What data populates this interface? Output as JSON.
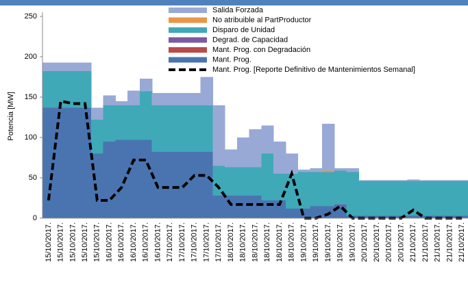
{
  "chart_data": {
    "type": "stacked-area",
    "y_label": "Potencia [MW]",
    "categories": [
      "15/10/2017.",
      "15/10/2017.",
      "15/10/2017.",
      "15/10/2017.",
      "15/10/2017.",
      "16/10/2017.",
      "16/10/2017.",
      "16/10/2017.",
      "16/10/2017.",
      "16/10/2017.",
      "17/10/2017.",
      "17/10/2017.",
      "17/10/2017.",
      "17/10/2017.",
      "17/10/2017.",
      "18/10/2017.",
      "18/10/2017.",
      "18/10/2017.",
      "18/10/2017.",
      "18/10/2017.",
      "18/10/2017.",
      "19/10/2017.",
      "19/10/2017.",
      "19/10/2017.",
      "19/10/2017.",
      "19/10/2017.",
      "20/10/2017.",
      "20/10/2017.",
      "20/10/2017.",
      "20/10/2017.",
      "21/10/2017.",
      "21/10/2017.",
      "21/10/2017.",
      "21/10/2017.",
      "21/10/2017."
    ],
    "series": [
      {
        "name": "Salida Forzada",
        "color": "#98a9d6",
        "values": [
          11,
          11,
          11,
          11,
          15,
          12,
          5,
          18,
          16,
          15,
          15,
          15,
          15,
          35,
          75,
          22,
          37,
          47,
          35,
          40,
          25,
          3,
          5,
          58,
          3,
          5,
          1,
          1,
          1,
          1,
          2,
          1,
          1,
          1,
          1
        ]
      },
      {
        "name": "No atribuible al PartProductor",
        "color": "#e8964a",
        "values": [
          0,
          0,
          0,
          0,
          0,
          0,
          0,
          0,
          0,
          0,
          0,
          0,
          0,
          0,
          0,
          0,
          0,
          0,
          0,
          0,
          0,
          0,
          0,
          2,
          0,
          0,
          0,
          0,
          0,
          0,
          0,
          0,
          0,
          0,
          0
        ]
      },
      {
        "name": "Disparo de Unidad",
        "color": "#3fa9b8",
        "values": [
          45,
          45,
          45,
          45,
          42,
          45,
          43,
          43,
          60,
          58,
          58,
          58,
          58,
          58,
          37,
          35,
          35,
          35,
          58,
          33,
          43,
          45,
          42,
          42,
          42,
          54,
          43,
          43,
          43,
          43,
          43,
          43,
          43,
          43,
          43
        ]
      },
      {
        "name": "Degrad. de Capacidad",
        "color": "#7a5ba0",
        "values": [
          0,
          0,
          0,
          0,
          0,
          0,
          0,
          0,
          0,
          0,
          0,
          0,
          0,
          0,
          0,
          0,
          0,
          0,
          0,
          0,
          0,
          0,
          0,
          0,
          2,
          0,
          0,
          0,
          0,
          0,
          0,
          0,
          0,
          0,
          0
        ]
      },
      {
        "name": "Mant. Prog. con Degradación",
        "color": "#b94a4a",
        "values": [
          0,
          0,
          0,
          0,
          0,
          0,
          0,
          0,
          0,
          0,
          0,
          0,
          0,
          0,
          0,
          0,
          0,
          0,
          0,
          0,
          0,
          0,
          0,
          0,
          0,
          0,
          0,
          0,
          0,
          0,
          0,
          0,
          0,
          0,
          0
        ]
      },
      {
        "name": "Mant. Prog.",
        "color": "#4a74b0",
        "values": [
          137,
          137,
          137,
          137,
          80,
          95,
          97,
          97,
          97,
          82,
          82,
          82,
          82,
          82,
          28,
          28,
          28,
          28,
          22,
          22,
          12,
          12,
          15,
          15,
          15,
          3,
          3,
          3,
          3,
          3,
          3,
          3,
          3,
          3,
          3
        ]
      }
    ],
    "line": {
      "name": "Mant. Prog. [Reporte Definitivo  de Mantenimientos Semanal]",
      "color": "#000000",
      "values": [
        22,
        145,
        142,
        142,
        22,
        22,
        38,
        72,
        72,
        38,
        38,
        38,
        53,
        53,
        38,
        17,
        17,
        17,
        17,
        17,
        55,
        0,
        0,
        5,
        15,
        0,
        0,
        0,
        0,
        0,
        10,
        0,
        0,
        0,
        0
      ]
    },
    "ylim": [
      0,
      250
    ],
    "yticks": [
      0,
      50,
      100,
      150,
      200,
      250
    ]
  }
}
